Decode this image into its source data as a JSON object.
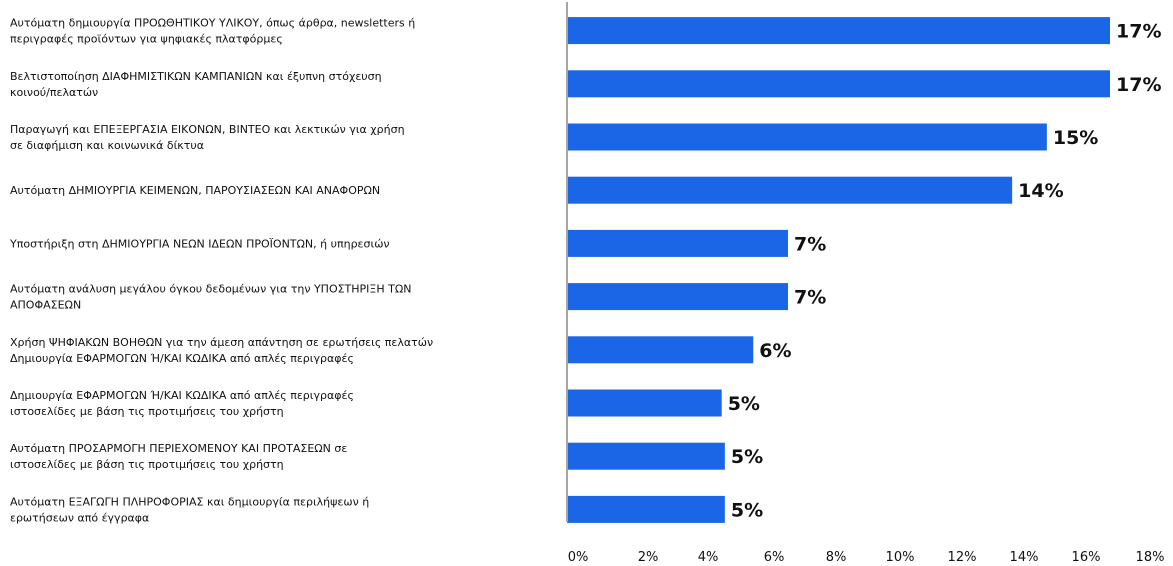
{
  "chart_data": {
    "type": "bar",
    "orientation": "horizontal",
    "categories": [
      [
        "Αυτόματη δημιουργία ΠΡΟΩΘΗΤΙΚΟΥ ΥΛΙΚΟΥ, όπως άρθρα, newsletters ή",
        "περιγραφές προϊόντων για ψηφιακές πλατφόρμες"
      ],
      [
        "Βελτιστοποίηση ΔΙΑΦΗΜΙΣΤΙΚΩΝ ΚΑΜΠΑΝΙΩΝ και έξυπνη στόχευση",
        "κοινού/πελατών"
      ],
      [
        "Παραγωγή και ΕΠΕΞΕΡΓΑΣΙΑ ΕΙΚΟΝΩΝ, ΒΙΝΤΕΟ και λεκτικών για χρήση",
        "σε διαφήμιση και κοινωνικά δίκτυα"
      ],
      [
        "Αυτόματη ΔΗΜΙΟΥΡΓΙΑ ΚΕΙΜΕΝΩΝ, ΠΑΡΟΥΣΙΑΣΕΩΝ ΚΑΙ ΑΝΑΦΟΡΩΝ"
      ],
      [
        "Υποστήριξη στη ΔΗΜΙΟΥΡΓΙΑ ΝΕΩΝ ΙΔΕΩΝ ΠΡΟΪΟΝΤΩΝ, ή υπηρεσιών"
      ],
      [
        "Αυτόματη ανάλυση μεγάλου όγκου δεδομένων για την ΥΠΟΣΤΗΡΙΞΗ ΤΩΝ",
        "ΑΠΟΦΑΣΕΩΝ"
      ],
      [
        "Χρήση ΨΗΦΙΑΚΩΝ ΒΟΗΘΩΝ για την άμεση απάντηση σε ερωτήσεις πελατών",
        "Δημιουργία ΕΦΑΡΜΟΓΩΝ Ή/ΚΑΙ ΚΩΔΙΚΑ από απλές περιγραφές"
      ],
      [
        "Δημιουργία ΕΦΑΡΜΟΓΩΝ Ή/ΚΑΙ ΚΩΔΙΚΑ από απλές περιγραφές",
        "ιστοσελίδες με βάση τις προτιμήσεις του χρήστη"
      ],
      [
        "Αυτόματη ΠΡΟΣΑΡΜΟΓΗ ΠΕΡΙΕΧΟΜΕΝΟΥ ΚΑΙ ΠΡΟΤΑΣΕΩΝ σε",
        "ιστοσελίδες με βάση τις προτιμήσεις του χρήστη"
      ],
      [
        "Αυτόματη ΕΞΑΓΩΓΗ ΠΛΗΡΟΦΟΡΙΑΣ και δημιουργία περιλήψεων ή",
        "ερωτήσεων από έγγραφα"
      ]
    ],
    "values": [
      17.2,
      17.2,
      15.2,
      14.1,
      7.0,
      7.0,
      5.9,
      4.9,
      5.0,
      5.0
    ],
    "value_labels": [
      "17%",
      "17%",
      "15%",
      "14%",
      "7%",
      "7%",
      "6%",
      "5%",
      "5%",
      "5%"
    ],
    "xlim": [
      0,
      18
    ],
    "xticks": [
      "0%",
      "2%",
      "4%",
      "6%",
      "8%",
      "10%",
      "12%",
      "14%",
      "16%",
      "18%"
    ],
    "xtick_values": [
      0,
      2,
      4,
      6,
      8,
      10,
      12,
      14,
      16,
      18
    ],
    "bar_color": "#1a66e6",
    "axis_color": "#a6a6a6",
    "grid": false,
    "legend": "none"
  }
}
